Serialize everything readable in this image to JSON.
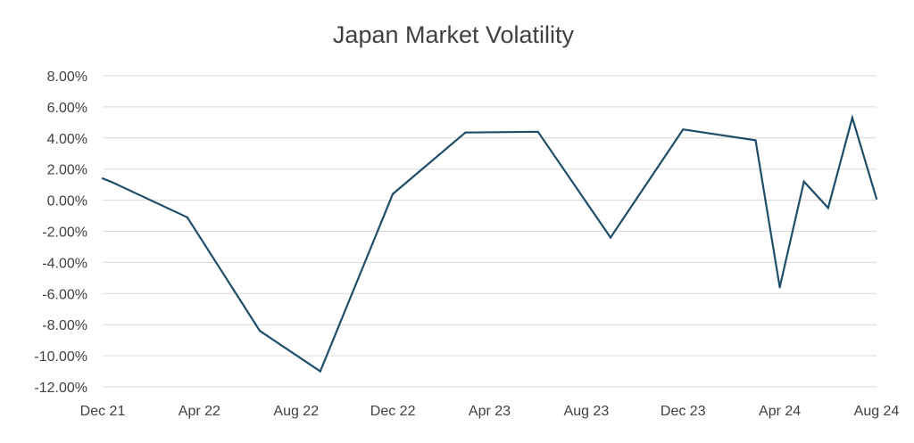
{
  "chart_data": {
    "type": "line",
    "title": "Japan Market Volatility",
    "xlabel": "",
    "ylabel": "",
    "ylim": [
      -12,
      8
    ],
    "ytick_step": 2,
    "y_tick_labels": [
      "8.00%",
      "6.00%",
      "4.00%",
      "2.00%",
      "0.00%",
      "-2.00%",
      "-4.00%",
      "-6.00%",
      "-8.00%",
      "-10.00%",
      "-12.00%"
    ],
    "x_tick_labels": [
      "Dec 21",
      "Apr 22",
      "Aug 22",
      "Dec 22",
      "Apr 23",
      "Aug 23",
      "Dec 23",
      "Apr 24",
      "Aug 24"
    ],
    "x_tick_months": [
      0,
      4,
      8,
      12,
      16,
      20,
      24,
      28,
      32
    ],
    "xlim_months": [
      0,
      32
    ],
    "grid": true,
    "legend": "none",
    "color": "#1f4e69",
    "series": [
      {
        "name": "Japan Market Volatility",
        "x_months": [
          0,
          0.4,
          3.5,
          6.5,
          9,
          12,
          15,
          18,
          21,
          24,
          27,
          28,
          29,
          30,
          31,
          32
        ],
        "values": [
          1.4,
          1.15,
          -1.1,
          -8.4,
          -11.0,
          0.4,
          4.35,
          4.4,
          -2.4,
          4.55,
          3.85,
          -5.6,
          1.2,
          -0.5,
          5.3,
          0.1
        ]
      }
    ]
  }
}
